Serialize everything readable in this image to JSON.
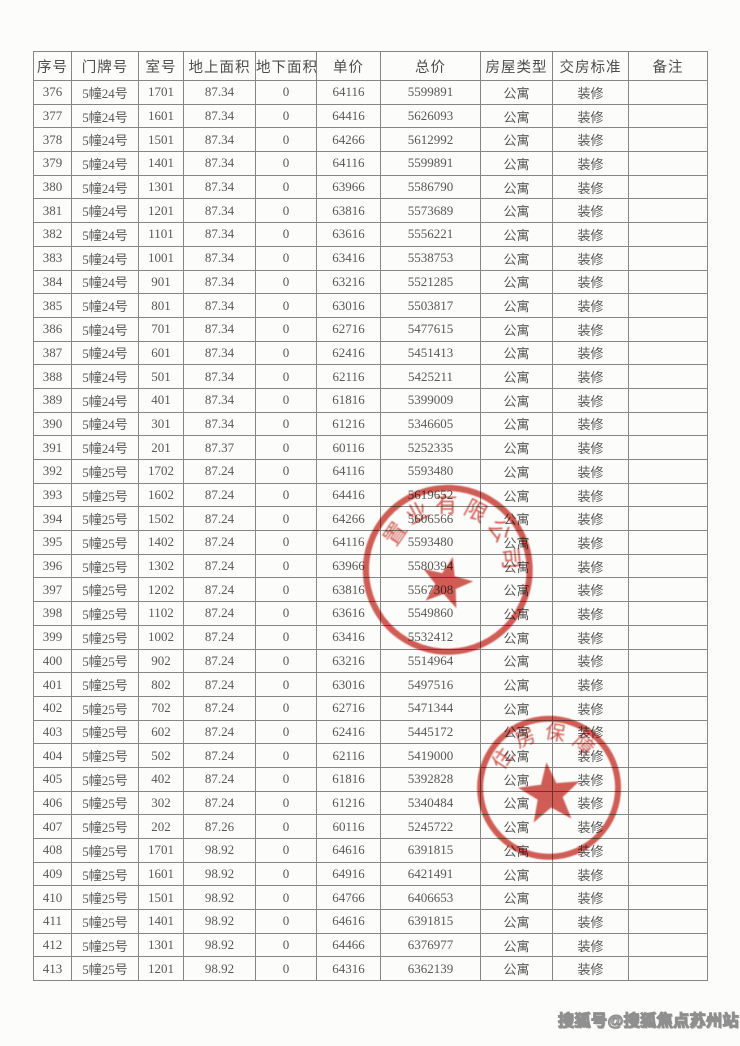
{
  "table": {
    "headers": [
      "序号",
      "门牌号",
      "室号",
      "地上面积",
      "地下面积",
      "单价",
      "总价",
      "房屋类型",
      "交房标准",
      "备注"
    ],
    "rows": [
      [
        "376",
        "5幢24号",
        "1701",
        "87.34",
        "0",
        "64116",
        "5599891",
        "公寓",
        "装修",
        ""
      ],
      [
        "377",
        "5幢24号",
        "1601",
        "87.34",
        "0",
        "64416",
        "5626093",
        "公寓",
        "装修",
        ""
      ],
      [
        "378",
        "5幢24号",
        "1501",
        "87.34",
        "0",
        "64266",
        "5612992",
        "公寓",
        "装修",
        ""
      ],
      [
        "379",
        "5幢24号",
        "1401",
        "87.34",
        "0",
        "64116",
        "5599891",
        "公寓",
        "装修",
        ""
      ],
      [
        "380",
        "5幢24号",
        "1301",
        "87.34",
        "0",
        "63966",
        "5586790",
        "公寓",
        "装修",
        ""
      ],
      [
        "381",
        "5幢24号",
        "1201",
        "87.34",
        "0",
        "63816",
        "5573689",
        "公寓",
        "装修",
        ""
      ],
      [
        "382",
        "5幢24号",
        "1101",
        "87.34",
        "0",
        "63616",
        "5556221",
        "公寓",
        "装修",
        ""
      ],
      [
        "383",
        "5幢24号",
        "1001",
        "87.34",
        "0",
        "63416",
        "5538753",
        "公寓",
        "装修",
        ""
      ],
      [
        "384",
        "5幢24号",
        "901",
        "87.34",
        "0",
        "63216",
        "5521285",
        "公寓",
        "装修",
        ""
      ],
      [
        "385",
        "5幢24号",
        "801",
        "87.34",
        "0",
        "63016",
        "5503817",
        "公寓",
        "装修",
        ""
      ],
      [
        "386",
        "5幢24号",
        "701",
        "87.34",
        "0",
        "62716",
        "5477615",
        "公寓",
        "装修",
        ""
      ],
      [
        "387",
        "5幢24号",
        "601",
        "87.34",
        "0",
        "62416",
        "5451413",
        "公寓",
        "装修",
        ""
      ],
      [
        "388",
        "5幢24号",
        "501",
        "87.34",
        "0",
        "62116",
        "5425211",
        "公寓",
        "装修",
        ""
      ],
      [
        "389",
        "5幢24号",
        "401",
        "87.34",
        "0",
        "61816",
        "5399009",
        "公寓",
        "装修",
        ""
      ],
      [
        "390",
        "5幢24号",
        "301",
        "87.34",
        "0",
        "61216",
        "5346605",
        "公寓",
        "装修",
        ""
      ],
      [
        "391",
        "5幢24号",
        "201",
        "87.37",
        "0",
        "60116",
        "5252335",
        "公寓",
        "装修",
        ""
      ],
      [
        "392",
        "5幢25号",
        "1702",
        "87.24",
        "0",
        "64116",
        "5593480",
        "公寓",
        "装修",
        ""
      ],
      [
        "393",
        "5幢25号",
        "1602",
        "87.24",
        "0",
        "64416",
        "5619652",
        "公寓",
        "装修",
        ""
      ],
      [
        "394",
        "5幢25号",
        "1502",
        "87.24",
        "0",
        "64266",
        "5606566",
        "公寓",
        "装修",
        ""
      ],
      [
        "395",
        "5幢25号",
        "1402",
        "87.24",
        "0",
        "64116",
        "5593480",
        "公寓",
        "装修",
        ""
      ],
      [
        "396",
        "5幢25号",
        "1302",
        "87.24",
        "0",
        "63966",
        "5580394",
        "公寓",
        "装修",
        ""
      ],
      [
        "397",
        "5幢25号",
        "1202",
        "87.24",
        "0",
        "63816",
        "5567308",
        "公寓",
        "装修",
        ""
      ],
      [
        "398",
        "5幢25号",
        "1102",
        "87.24",
        "0",
        "63616",
        "5549860",
        "公寓",
        "装修",
        ""
      ],
      [
        "399",
        "5幢25号",
        "1002",
        "87.24",
        "0",
        "63416",
        "5532412",
        "公寓",
        "装修",
        ""
      ],
      [
        "400",
        "5幢25号",
        "902",
        "87.24",
        "0",
        "63216",
        "5514964",
        "公寓",
        "装修",
        ""
      ],
      [
        "401",
        "5幢25号",
        "802",
        "87.24",
        "0",
        "63016",
        "5497516",
        "公寓",
        "装修",
        ""
      ],
      [
        "402",
        "5幢25号",
        "702",
        "87.24",
        "0",
        "62716",
        "5471344",
        "公寓",
        "装修",
        ""
      ],
      [
        "403",
        "5幢25号",
        "602",
        "87.24",
        "0",
        "62416",
        "5445172",
        "公寓",
        "装修",
        ""
      ],
      [
        "404",
        "5幢25号",
        "502",
        "87.24",
        "0",
        "62116",
        "5419000",
        "公寓",
        "装修",
        ""
      ],
      [
        "405",
        "5幢25号",
        "402",
        "87.24",
        "0",
        "61816",
        "5392828",
        "公寓",
        "装修",
        ""
      ],
      [
        "406",
        "5幢25号",
        "302",
        "87.24",
        "0",
        "61216",
        "5340484",
        "公寓",
        "装修",
        ""
      ],
      [
        "407",
        "5幢25号",
        "202",
        "87.26",
        "0",
        "60116",
        "5245722",
        "公寓",
        "装修",
        ""
      ],
      [
        "408",
        "5幢25号",
        "1701",
        "98.92",
        "0",
        "64616",
        "6391815",
        "公寓",
        "装修",
        ""
      ],
      [
        "409",
        "5幢25号",
        "1601",
        "98.92",
        "0",
        "64916",
        "6421491",
        "公寓",
        "装修",
        ""
      ],
      [
        "410",
        "5幢25号",
        "1501",
        "98.92",
        "0",
        "64766",
        "6406653",
        "公寓",
        "装修",
        ""
      ],
      [
        "411",
        "5幢25号",
        "1401",
        "98.92",
        "0",
        "64616",
        "6391815",
        "公寓",
        "装修",
        ""
      ],
      [
        "412",
        "5幢25号",
        "1301",
        "98.92",
        "0",
        "64466",
        "6376977",
        "公寓",
        "装修",
        ""
      ],
      [
        "413",
        "5幢25号",
        "1201",
        "98.92",
        "0",
        "64316",
        "6362139",
        "公寓",
        "装修",
        ""
      ]
    ]
  },
  "stamps": [
    {
      "arc_text": "置业有限公司",
      "color": "#cc4840"
    },
    {
      "arc_text": "住房保障",
      "color": "#cc4840"
    }
  ],
  "watermark": "搜狐号@搜狐焦点苏州站",
  "colors": {
    "stamp_red": "#cc4840",
    "table_border": "#868686",
    "text": "#585858",
    "page_background": "#fcfcfa"
  }
}
